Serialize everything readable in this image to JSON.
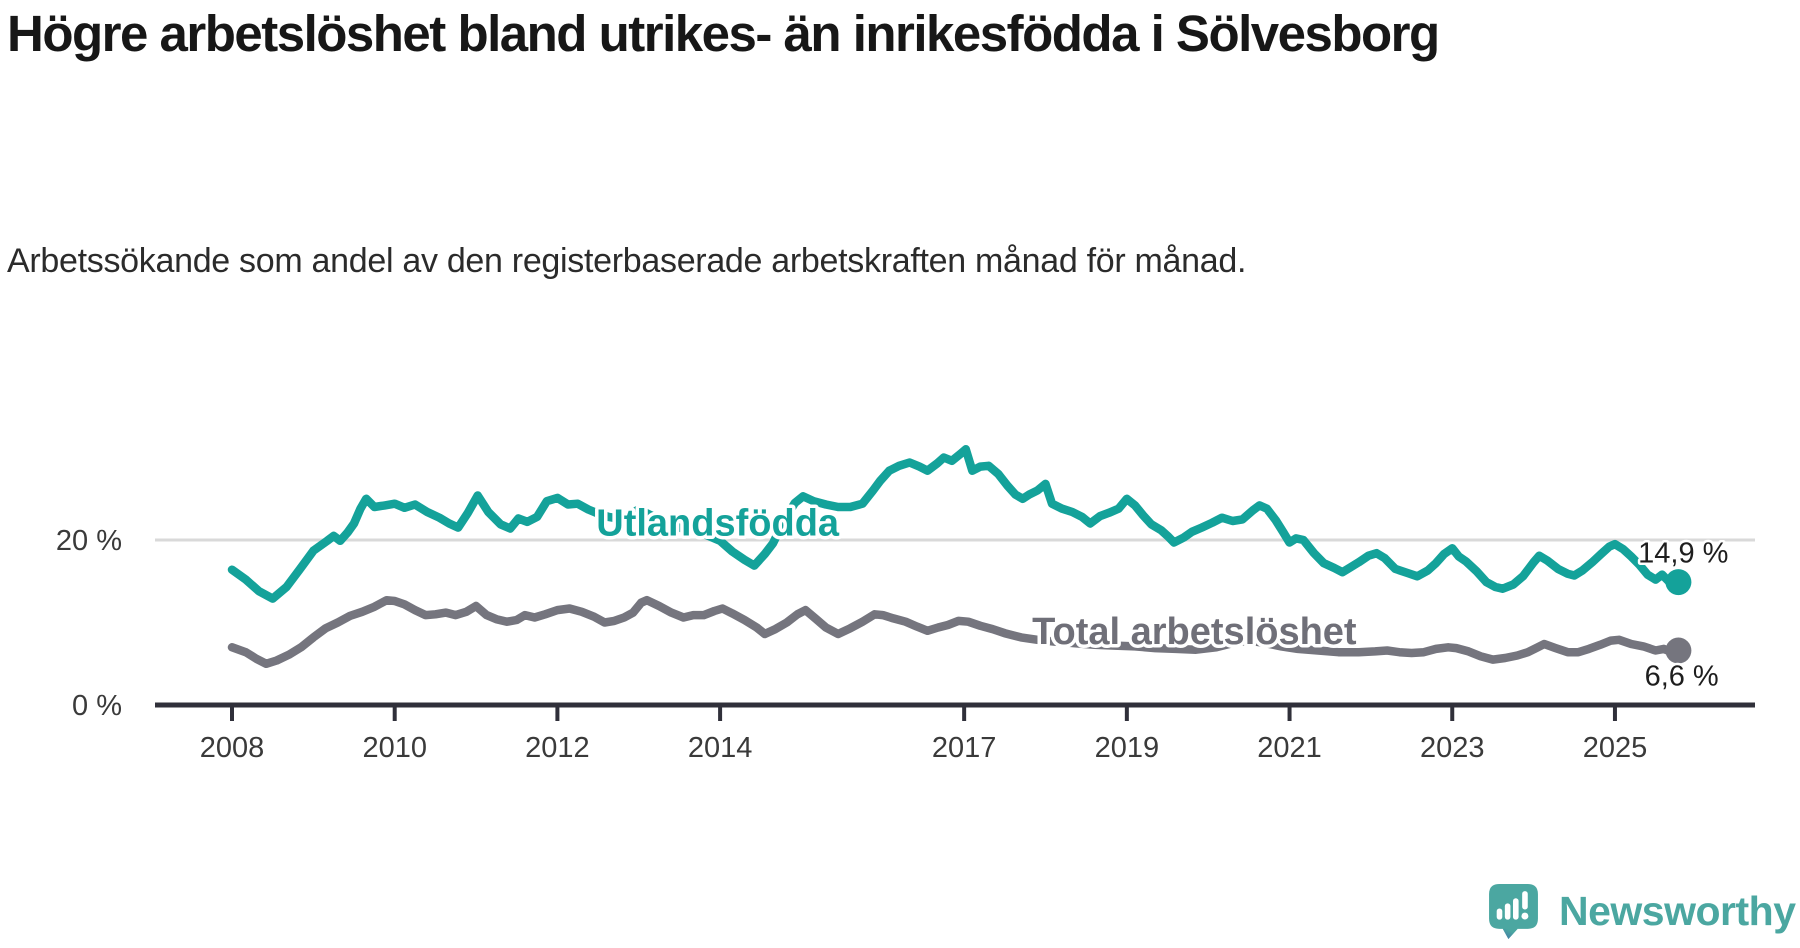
{
  "header": {
    "title": "Högre arbetslöshet bland utrikes- än inrikesfödda i Sölvesborg",
    "subtitle": "Arbetssökande som andel av den registerbaserade arbetskraften månad för månad."
  },
  "footer": {
    "brand": "Newsworthy",
    "brand_color": "#4BA7A1"
  },
  "colors": {
    "series_foreign_born": "#14a29a",
    "series_total": "#75757e",
    "axis": "#30303a",
    "grid": "#d9d9d9",
    "tick_label": "#3a3a3a",
    "annotation_text": "#1e1e1e"
  },
  "chart_data": {
    "type": "line",
    "title": "Högre arbetslöshet bland utrikes- än inrikesfödda i Sölvesborg",
    "subtitle": "Arbetssökande som andel av den registerbaserade arbetskraften månad för månad.",
    "xlabel": "",
    "ylabel": "",
    "x_axis": {
      "ticks": [
        2008,
        2010,
        2012,
        2014,
        2017,
        2019,
        2021,
        2023,
        2025
      ],
      "range": [
        2007.05,
        2026.7
      ]
    },
    "y_axis": {
      "unit": "%",
      "ticks": [
        {
          "value": 20,
          "label": "20 %",
          "grid": true
        },
        {
          "value": 0,
          "label": "0 %",
          "grid": false
        }
      ],
      "ylim": [
        0,
        39.4
      ]
    },
    "legend_position": "on-chart-labels",
    "grid": "y-20-only",
    "series": [
      {
        "name": "Utlandsfödda",
        "color": "#14a29a",
        "end_value_label": "14,9 %",
        "end_dot": true,
        "points": [
          [
            2008.0,
            16.4
          ],
          [
            2008.17,
            15.2
          ],
          [
            2008.33,
            13.8
          ],
          [
            2008.5,
            12.9
          ],
          [
            2008.67,
            14.3
          ],
          [
            2008.83,
            16.4
          ],
          [
            2009.0,
            18.7
          ],
          [
            2009.17,
            19.9
          ],
          [
            2009.25,
            20.5
          ],
          [
            2009.33,
            19.9
          ],
          [
            2009.42,
            20.9
          ],
          [
            2009.5,
            22.0
          ],
          [
            2009.58,
            23.8
          ],
          [
            2009.65,
            25.0
          ],
          [
            2009.75,
            24.0
          ],
          [
            2009.88,
            24.2
          ],
          [
            2010.0,
            24.4
          ],
          [
            2010.12,
            23.9
          ],
          [
            2010.25,
            24.3
          ],
          [
            2010.4,
            23.4
          ],
          [
            2010.55,
            22.7
          ],
          [
            2010.67,
            22.0
          ],
          [
            2010.78,
            21.5
          ],
          [
            2010.9,
            23.3
          ],
          [
            2011.02,
            25.4
          ],
          [
            2011.15,
            23.4
          ],
          [
            2011.3,
            21.9
          ],
          [
            2011.42,
            21.4
          ],
          [
            2011.52,
            22.6
          ],
          [
            2011.63,
            22.2
          ],
          [
            2011.75,
            22.8
          ],
          [
            2011.87,
            24.7
          ],
          [
            2012.0,
            25.1
          ],
          [
            2012.13,
            24.3
          ],
          [
            2012.25,
            24.4
          ],
          [
            2012.38,
            23.7
          ],
          [
            2012.5,
            23.2
          ],
          [
            2012.63,
            22.8
          ],
          [
            2012.75,
            22.6
          ],
          [
            2012.88,
            23.1
          ],
          [
            2013.0,
            23.7
          ],
          [
            2013.17,
            22.9
          ],
          [
            2013.33,
            22.1
          ],
          [
            2013.5,
            21.5
          ],
          [
            2013.67,
            21.1
          ],
          [
            2013.83,
            20.6
          ],
          [
            2014.0,
            19.9
          ],
          [
            2014.15,
            18.6
          ],
          [
            2014.3,
            17.6
          ],
          [
            2014.42,
            16.9
          ],
          [
            2014.55,
            18.3
          ],
          [
            2014.65,
            19.6
          ],
          [
            2014.8,
            22.6
          ],
          [
            2014.92,
            24.5
          ],
          [
            2015.02,
            25.3
          ],
          [
            2015.15,
            24.7
          ],
          [
            2015.3,
            24.3
          ],
          [
            2015.45,
            24.0
          ],
          [
            2015.6,
            24.0
          ],
          [
            2015.75,
            24.4
          ],
          [
            2015.88,
            26.0
          ],
          [
            2015.97,
            27.2
          ],
          [
            2016.08,
            28.4
          ],
          [
            2016.2,
            29.0
          ],
          [
            2016.33,
            29.4
          ],
          [
            2016.45,
            28.9
          ],
          [
            2016.55,
            28.4
          ],
          [
            2016.67,
            29.3
          ],
          [
            2016.75,
            30.0
          ],
          [
            2016.85,
            29.6
          ],
          [
            2016.95,
            30.4
          ],
          [
            2017.02,
            31.0
          ],
          [
            2017.1,
            28.4
          ],
          [
            2017.2,
            28.9
          ],
          [
            2017.3,
            29.0
          ],
          [
            2017.42,
            28.0
          ],
          [
            2017.53,
            26.6
          ],
          [
            2017.63,
            25.5
          ],
          [
            2017.72,
            25.0
          ],
          [
            2017.8,
            25.5
          ],
          [
            2017.9,
            26.0
          ],
          [
            2018.0,
            26.8
          ],
          [
            2018.08,
            24.4
          ],
          [
            2018.2,
            23.8
          ],
          [
            2018.33,
            23.4
          ],
          [
            2018.45,
            22.8
          ],
          [
            2018.55,
            22.0
          ],
          [
            2018.67,
            22.9
          ],
          [
            2018.78,
            23.3
          ],
          [
            2018.9,
            23.8
          ],
          [
            2019.0,
            25.0
          ],
          [
            2019.1,
            24.2
          ],
          [
            2019.2,
            23.0
          ],
          [
            2019.3,
            21.9
          ],
          [
            2019.42,
            21.2
          ],
          [
            2019.5,
            20.5
          ],
          [
            2019.58,
            19.7
          ],
          [
            2019.7,
            20.3
          ],
          [
            2019.8,
            21.0
          ],
          [
            2019.92,
            21.5
          ],
          [
            2020.05,
            22.1
          ],
          [
            2020.17,
            22.7
          ],
          [
            2020.3,
            22.3
          ],
          [
            2020.42,
            22.5
          ],
          [
            2020.55,
            23.6
          ],
          [
            2020.63,
            24.2
          ],
          [
            2020.72,
            23.8
          ],
          [
            2020.83,
            22.4
          ],
          [
            2020.92,
            21.0
          ],
          [
            2021.0,
            19.7
          ],
          [
            2021.08,
            20.2
          ],
          [
            2021.17,
            20.0
          ],
          [
            2021.3,
            18.4
          ],
          [
            2021.42,
            17.2
          ],
          [
            2021.55,
            16.6
          ],
          [
            2021.65,
            16.1
          ],
          [
            2021.75,
            16.7
          ],
          [
            2021.85,
            17.3
          ],
          [
            2021.97,
            18.1
          ],
          [
            2022.07,
            18.4
          ],
          [
            2022.17,
            17.8
          ],
          [
            2022.3,
            16.5
          ],
          [
            2022.45,
            16.0
          ],
          [
            2022.57,
            15.6
          ],
          [
            2022.7,
            16.3
          ],
          [
            2022.8,
            17.2
          ],
          [
            2022.9,
            18.3
          ],
          [
            2023.0,
            19.0
          ],
          [
            2023.08,
            18.0
          ],
          [
            2023.17,
            17.4
          ],
          [
            2023.3,
            16.2
          ],
          [
            2023.42,
            14.9
          ],
          [
            2023.53,
            14.3
          ],
          [
            2023.62,
            14.1
          ],
          [
            2023.75,
            14.6
          ],
          [
            2023.87,
            15.6
          ],
          [
            2024.0,
            17.3
          ],
          [
            2024.07,
            18.1
          ],
          [
            2024.17,
            17.5
          ],
          [
            2024.3,
            16.5
          ],
          [
            2024.42,
            15.9
          ],
          [
            2024.5,
            15.7
          ],
          [
            2024.6,
            16.3
          ],
          [
            2024.72,
            17.3
          ],
          [
            2024.83,
            18.3
          ],
          [
            2024.93,
            19.2
          ],
          [
            2025.0,
            19.5
          ],
          [
            2025.1,
            18.9
          ],
          [
            2025.2,
            18.0
          ],
          [
            2025.3,
            17.0
          ],
          [
            2025.4,
            15.8
          ],
          [
            2025.5,
            15.2
          ],
          [
            2025.58,
            15.8
          ],
          [
            2025.67,
            14.9
          ],
          [
            2025.78,
            14.9
          ]
        ]
      },
      {
        "name": "Total arbetslöshet",
        "color": "#75757e",
        "end_value_label": "6,6 %",
        "end_dot": true,
        "points": [
          [
            2008.0,
            7.0
          ],
          [
            2008.17,
            6.4
          ],
          [
            2008.3,
            5.6
          ],
          [
            2008.42,
            5.0
          ],
          [
            2008.55,
            5.4
          ],
          [
            2008.7,
            6.1
          ],
          [
            2008.85,
            7.0
          ],
          [
            2009.0,
            8.2
          ],
          [
            2009.15,
            9.3
          ],
          [
            2009.3,
            10.0
          ],
          [
            2009.45,
            10.8
          ],
          [
            2009.6,
            11.3
          ],
          [
            2009.75,
            11.9
          ],
          [
            2009.9,
            12.7
          ],
          [
            2010.0,
            12.6
          ],
          [
            2010.12,
            12.2
          ],
          [
            2010.25,
            11.5
          ],
          [
            2010.38,
            10.9
          ],
          [
            2010.5,
            11.0
          ],
          [
            2010.63,
            11.2
          ],
          [
            2010.75,
            10.9
          ],
          [
            2010.88,
            11.3
          ],
          [
            2011.0,
            12.0
          ],
          [
            2011.13,
            10.9
          ],
          [
            2011.25,
            10.4
          ],
          [
            2011.38,
            10.1
          ],
          [
            2011.5,
            10.3
          ],
          [
            2011.6,
            10.9
          ],
          [
            2011.72,
            10.6
          ],
          [
            2011.85,
            11.0
          ],
          [
            2012.0,
            11.5
          ],
          [
            2012.15,
            11.7
          ],
          [
            2012.3,
            11.3
          ],
          [
            2012.45,
            10.7
          ],
          [
            2012.58,
            10.0
          ],
          [
            2012.7,
            10.2
          ],
          [
            2012.82,
            10.6
          ],
          [
            2012.93,
            11.2
          ],
          [
            2013.03,
            12.4
          ],
          [
            2013.1,
            12.7
          ],
          [
            2013.25,
            12.0
          ],
          [
            2013.4,
            11.2
          ],
          [
            2013.55,
            10.6
          ],
          [
            2013.67,
            10.9
          ],
          [
            2013.8,
            10.9
          ],
          [
            2013.93,
            11.4
          ],
          [
            2014.03,
            11.7
          ],
          [
            2014.15,
            11.1
          ],
          [
            2014.3,
            10.3
          ],
          [
            2014.45,
            9.4
          ],
          [
            2014.55,
            8.6
          ],
          [
            2014.68,
            9.2
          ],
          [
            2014.82,
            10.0
          ],
          [
            2014.95,
            11.0
          ],
          [
            2015.05,
            11.5
          ],
          [
            2015.17,
            10.5
          ],
          [
            2015.3,
            9.4
          ],
          [
            2015.45,
            8.6
          ],
          [
            2015.6,
            9.3
          ],
          [
            2015.75,
            10.1
          ],
          [
            2015.9,
            11.0
          ],
          [
            2016.0,
            10.9
          ],
          [
            2016.13,
            10.5
          ],
          [
            2016.28,
            10.1
          ],
          [
            2016.42,
            9.5
          ],
          [
            2016.55,
            9.0
          ],
          [
            2016.68,
            9.4
          ],
          [
            2016.8,
            9.7
          ],
          [
            2016.93,
            10.2
          ],
          [
            2017.05,
            10.1
          ],
          [
            2017.2,
            9.6
          ],
          [
            2017.35,
            9.2
          ],
          [
            2017.5,
            8.7
          ],
          [
            2017.7,
            8.2
          ],
          [
            2017.9,
            7.9
          ],
          [
            2018.1,
            7.7
          ],
          [
            2018.35,
            7.5
          ],
          [
            2018.6,
            7.3
          ],
          [
            2018.85,
            7.2
          ],
          [
            2019.1,
            7.1
          ],
          [
            2019.35,
            6.9
          ],
          [
            2019.6,
            6.8
          ],
          [
            2019.85,
            6.7
          ],
          [
            2020.1,
            7.0
          ],
          [
            2020.3,
            7.5
          ],
          [
            2020.5,
            7.8
          ],
          [
            2020.7,
            7.5
          ],
          [
            2020.9,
            7.1
          ],
          [
            2021.1,
            6.8
          ],
          [
            2021.35,
            6.6
          ],
          [
            2021.6,
            6.4
          ],
          [
            2021.85,
            6.4
          ],
          [
            2022.05,
            6.5
          ],
          [
            2022.2,
            6.6
          ],
          [
            2022.35,
            6.4
          ],
          [
            2022.5,
            6.3
          ],
          [
            2022.65,
            6.4
          ],
          [
            2022.8,
            6.8
          ],
          [
            2022.95,
            7.0
          ],
          [
            2023.05,
            6.9
          ],
          [
            2023.2,
            6.5
          ],
          [
            2023.35,
            5.9
          ],
          [
            2023.5,
            5.5
          ],
          [
            2023.65,
            5.7
          ],
          [
            2023.8,
            6.0
          ],
          [
            2023.93,
            6.4
          ],
          [
            2024.05,
            7.0
          ],
          [
            2024.13,
            7.4
          ],
          [
            2024.27,
            6.9
          ],
          [
            2024.42,
            6.4
          ],
          [
            2024.55,
            6.4
          ],
          [
            2024.68,
            6.8
          ],
          [
            2024.82,
            7.3
          ],
          [
            2024.95,
            7.8
          ],
          [
            2025.05,
            7.9
          ],
          [
            2025.2,
            7.4
          ],
          [
            2025.35,
            7.1
          ],
          [
            2025.5,
            6.6
          ],
          [
            2025.6,
            6.8
          ],
          [
            2025.7,
            6.4
          ],
          [
            2025.78,
            6.6
          ]
        ]
      }
    ],
    "annotations": [
      {
        "role": "series-label",
        "text": "Utlandsfödda",
        "x": 2013.97,
        "y": 22.1,
        "color": "#14a29a"
      },
      {
        "role": "series-label",
        "text": "Total arbetslöshet",
        "x": 2019.83,
        "y": 9.0,
        "color": "#6f6f78"
      },
      {
        "role": "value-label",
        "text": "14,9 %",
        "x": 2025.84,
        "y": 18.5,
        "color": "#1e1e1e"
      },
      {
        "role": "value-label",
        "text": "6,6 %",
        "x": 2025.82,
        "y": 3.6,
        "color": "#1e1e1e"
      }
    ]
  }
}
